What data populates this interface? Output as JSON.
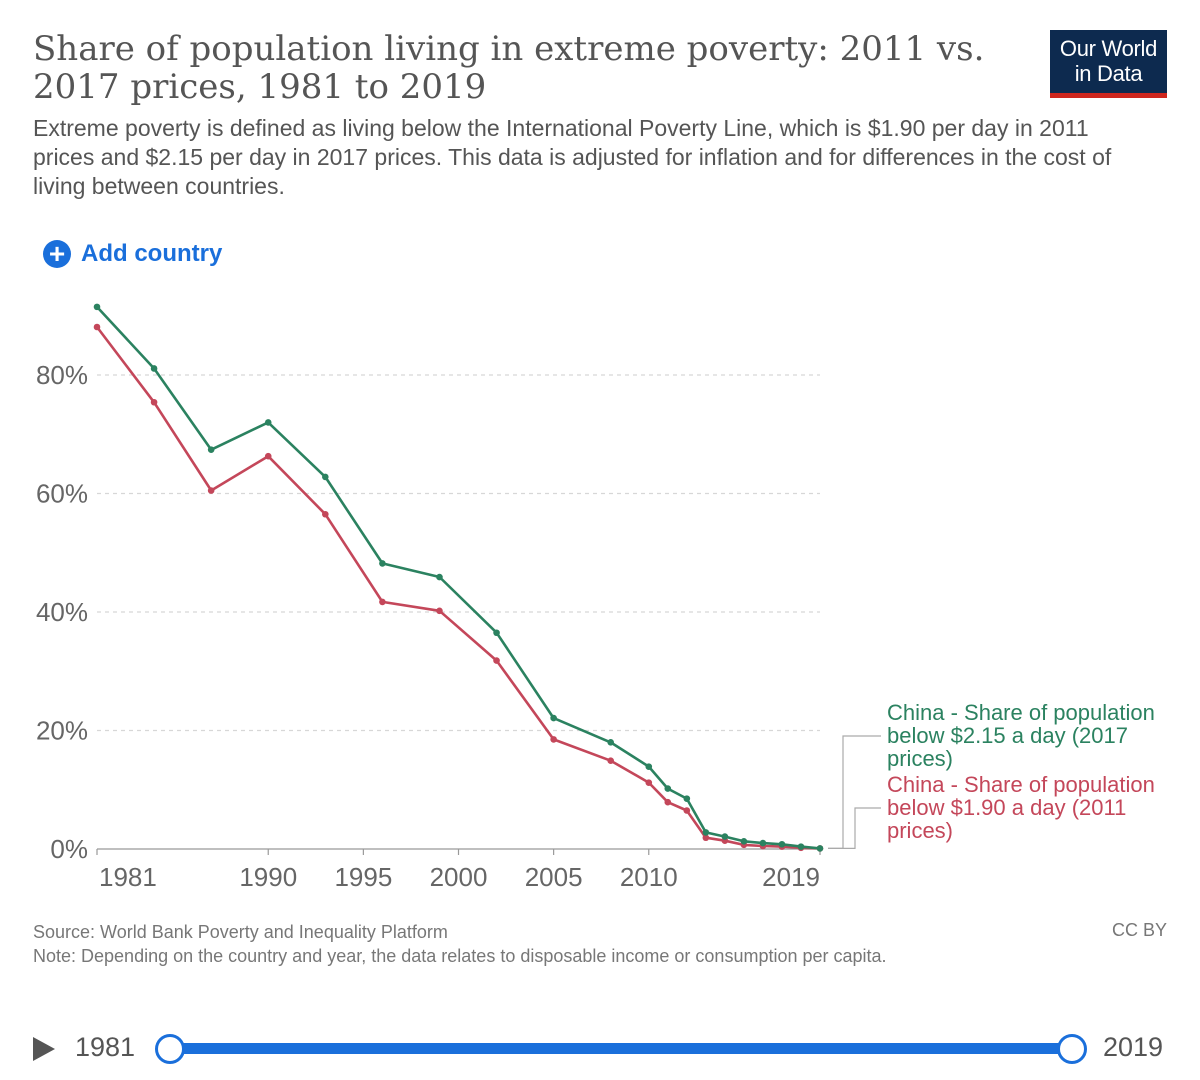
{
  "header": {
    "title": "Share of population living in extreme poverty: 2011 vs. 2017 prices, 1981 to 2019",
    "subtitle": "Extreme poverty is defined as living below the International Poverty Line, which is $1.90 per day in 2011 prices and $2.15 per day in 2017 prices. This data is adjusted for inflation and for differences in the cost of living between countries.",
    "logo_line1": "Our World",
    "logo_line2": "in Data"
  },
  "controls": {
    "add_country_label": "Add country",
    "add_icon": "plus-circle-icon"
  },
  "chart_data": {
    "type": "line",
    "title": "Share of population living in extreme poverty: 2011 vs. 2017 prices, 1981 to 2019",
    "xlabel": "",
    "ylabel": "",
    "xlim": [
      1981,
      2019
    ],
    "ylim": [
      0,
      90
    ],
    "y_ticks": [
      0,
      20,
      40,
      60,
      80
    ],
    "y_tick_labels": [
      "0%",
      "20%",
      "40%",
      "60%",
      "80%"
    ],
    "x_ticks": [
      1981,
      1990,
      1995,
      2000,
      2005,
      2010,
      2019
    ],
    "x_tick_labels": [
      "1981",
      "1990",
      "1995",
      "2000",
      "2005",
      "2010",
      "2019"
    ],
    "grid": "horizontal-dashed",
    "legend": "right",
    "series": [
      {
        "name": "China - Share of population below $2.15 a day (2017 prices)",
        "color": "#2b8260",
        "points": [
          [
            1981,
            91.5
          ],
          [
            1984,
            81.1
          ],
          [
            1987,
            67.4
          ],
          [
            1990,
            72.0
          ],
          [
            1993,
            62.8
          ],
          [
            1996,
            48.2
          ],
          [
            1999,
            45.9
          ],
          [
            2002,
            36.5
          ],
          [
            2005,
            22.1
          ],
          [
            2008,
            18.0
          ],
          [
            2010,
            13.9
          ],
          [
            2011,
            10.2
          ],
          [
            2012,
            8.5
          ],
          [
            2013,
            2.8
          ],
          [
            2014,
            2.1
          ],
          [
            2015,
            1.3
          ],
          [
            2016,
            1.0
          ],
          [
            2017,
            0.8
          ],
          [
            2018,
            0.4
          ],
          [
            2019,
            0.1
          ]
        ]
      },
      {
        "name": "China - Share of population below $1.90 a day (2011 prices)",
        "color": "#c4475a",
        "points": [
          [
            1981,
            88.1
          ],
          [
            1984,
            75.4
          ],
          [
            1987,
            60.5
          ],
          [
            1990,
            66.3
          ],
          [
            1993,
            56.5
          ],
          [
            1996,
            41.7
          ],
          [
            1999,
            40.2
          ],
          [
            2002,
            31.8
          ],
          [
            2005,
            18.5
          ],
          [
            2008,
            14.9
          ],
          [
            2010,
            11.2
          ],
          [
            2011,
            7.9
          ],
          [
            2012,
            6.5
          ],
          [
            2013,
            1.9
          ],
          [
            2014,
            1.4
          ],
          [
            2015,
            0.7
          ],
          [
            2016,
            0.5
          ],
          [
            2017,
            0.4
          ],
          [
            2018,
            0.2
          ],
          [
            2019,
            0.1
          ]
        ]
      }
    ],
    "legend_lines": [
      [
        "China - Share of population",
        "below $2.15 a day (2017",
        "prices)"
      ],
      [
        "China - Share of population",
        "below $1.90 a day (2011",
        "prices)"
      ]
    ]
  },
  "footer": {
    "source": "Source: World Bank Poverty and Inequality Platform",
    "note": "Note: Depending on the country and year, the data relates to disposable income or consumption per capita.",
    "license": "CC BY"
  },
  "timeline": {
    "start_year": "1981",
    "end_year": "2019",
    "play_icon": "play-icon"
  }
}
